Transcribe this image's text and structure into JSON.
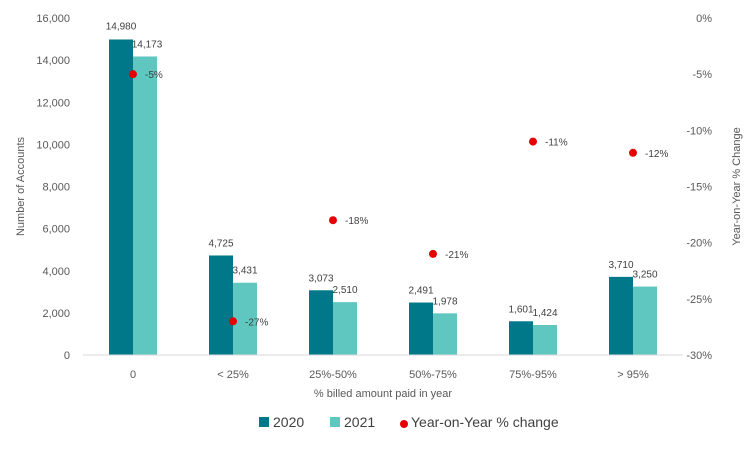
{
  "chart_data": {
    "type": "bar",
    "categories": [
      "0",
      "< 25%",
      "25%-50%",
      "50%-75%",
      "75%-95%",
      "> 95%"
    ],
    "series": [
      {
        "name": "2020",
        "color": "#00788A",
        "values": [
          14980,
          4725,
          3073,
          2491,
          1601,
          3710
        ],
        "labels": [
          "14,980",
          "4,725",
          "3,073",
          "2,491",
          "1,601",
          "3,710"
        ]
      },
      {
        "name": "2021",
        "color": "#5FC6C0",
        "values": [
          14173,
          3431,
          2510,
          1978,
          1424,
          3250
        ],
        "labels": [
          "14,173",
          "3,431",
          "2,510",
          "1,978",
          "1,424",
          "3,250"
        ]
      }
    ],
    "secondary_series": {
      "name": "Year-on-Year % change",
      "type": "scatter",
      "color": "#E60000",
      "values": [
        -5,
        -27,
        -18,
        -21,
        -11,
        -12
      ],
      "labels": [
        "-5%",
        "-27%",
        "-18%",
        "-21%",
        "-11%",
        "-12%"
      ]
    },
    "xlabel": "% billed amount paid in year",
    "ylabel": "Number of Accounts",
    "y2label": "Year-on-Year % Change",
    "ylim": [
      0,
      16000
    ],
    "yticks": [
      0,
      2000,
      4000,
      6000,
      8000,
      10000,
      12000,
      14000,
      16000
    ],
    "ytick_labels": [
      "0",
      "2,000",
      "4,000",
      "6,000",
      "8,000",
      "10,000",
      "12,000",
      "14,000",
      "16,000"
    ],
    "y2lim": [
      -30,
      0
    ],
    "y2ticks": [
      0,
      -5,
      -10,
      -15,
      -20,
      -25,
      -30
    ],
    "y2tick_labels": [
      "0%",
      "-5%",
      "-10%",
      "-15%",
      "-20%",
      "-25%",
      "-30%"
    ],
    "legend": {
      "position": "bottom",
      "items": [
        "2020",
        "2021",
        "Year-on-Year % change"
      ]
    },
    "grid": false
  }
}
